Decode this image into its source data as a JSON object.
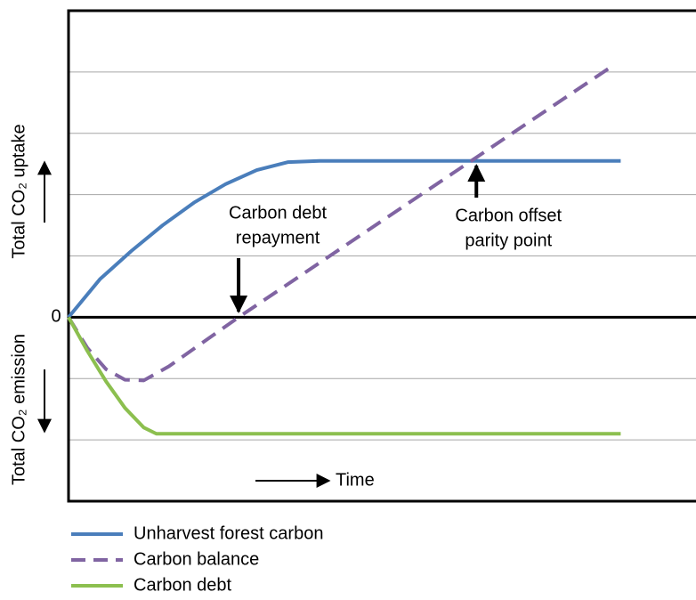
{
  "chart_data": {
    "type": "line",
    "ylabel_top": "Total CO₂ uptake",
    "ylabel_bottom": "Total CO₂ emission",
    "xlabel": "Time",
    "xlim": [
      0,
      10
    ],
    "ylim": [
      -3,
      5
    ],
    "yticks": [
      0
    ],
    "grid_lines": [
      -2,
      -1,
      1,
      2,
      3,
      4
    ],
    "series": [
      {
        "name": "Unharvest forest carbon",
        "color": "#4a7ebb",
        "dash": false,
        "x": [
          0,
          0.5,
          1,
          1.5,
          2,
          2.5,
          3,
          3.5,
          4,
          8.8
        ],
        "values": [
          0,
          0.62,
          1.08,
          1.5,
          1.87,
          2.17,
          2.4,
          2.53,
          2.55,
          2.55
        ]
      },
      {
        "name": "Carbon balance",
        "color": "#8064a2",
        "dash": true,
        "x": [
          0,
          0.3,
          0.6,
          0.9,
          1.2,
          1.6,
          2.71,
          8.7
        ],
        "values": [
          0,
          -0.5,
          -0.85,
          -1.02,
          -1.03,
          -0.8,
          0,
          4.12
        ]
      },
      {
        "name": "Carbon debt",
        "color": "#8cbf4f",
        "dash": false,
        "x": [
          0,
          0.3,
          0.6,
          0.9,
          1.2,
          1.4,
          8.8
        ],
        "values": [
          0,
          -0.55,
          -1.05,
          -1.48,
          -1.8,
          -1.9,
          -1.9
        ]
      }
    ],
    "annotations": [
      {
        "lines": [
          "Carbon debt",
          "repayment"
        ],
        "x": 2.71,
        "y": 0
      },
      {
        "lines": [
          "Carbon offset",
          "parity point"
        ],
        "x": 6.5,
        "y": 2.55
      }
    ]
  }
}
